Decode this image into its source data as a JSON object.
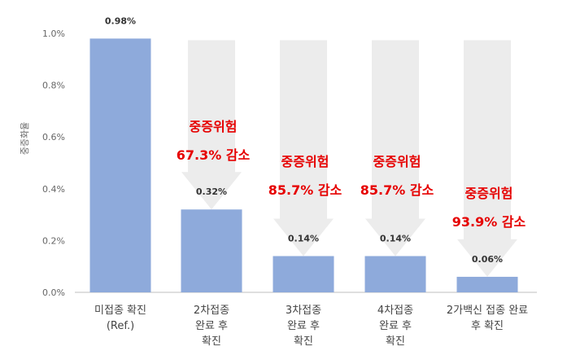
{
  "chart_data": {
    "type": "bar",
    "title": "",
    "xlabel": "",
    "ylabel": "중증화율",
    "ylim": [
      0,
      1.0
    ],
    "yticks": [
      "0.0%",
      "0.2%",
      "0.4%",
      "0.6%",
      "0.8%",
      "1.0%"
    ],
    "grid": false,
    "categories": [
      [
        "미접종 확진",
        "(Ref.)"
      ],
      [
        "2차접종",
        "완료 후",
        "확진"
      ],
      [
        "3차접종",
        "완료 후",
        "확진"
      ],
      [
        "4차접종",
        "완료 후",
        "확진"
      ],
      [
        "2가백신 접종 완료",
        "후 확진"
      ]
    ],
    "values": [
      0.98,
      0.32,
      0.14,
      0.14,
      0.06
    ],
    "value_labels": [
      "0.98%",
      "0.32%",
      "0.14%",
      "0.14%",
      "0.06%"
    ],
    "bar_color": "#8eaadb",
    "arrow_color": "#ececec",
    "annotation_color": "#e60000",
    "annotations": [
      null,
      [
        "중증위험",
        "67.3% 감소"
      ],
      [
        "중증위험",
        "85.7% 감소"
      ],
      [
        "중증위험",
        "85.7% 감소"
      ],
      [
        "중증위험",
        "93.9% 감소"
      ]
    ]
  }
}
